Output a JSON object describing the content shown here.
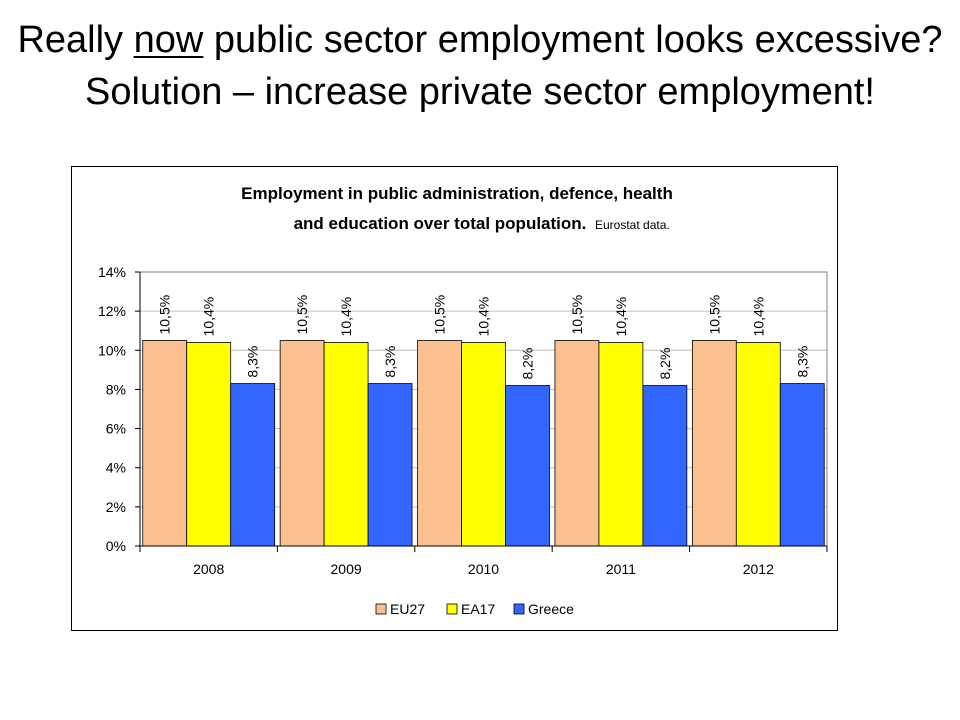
{
  "slide": {
    "title_before": "Really ",
    "title_emphasis": "now",
    "title_after": " public sector employment looks excessive? Solution – increase private sector employment!"
  },
  "chart_data": {
    "type": "bar",
    "title_line1": "Employment in public administration, defence, health",
    "title_line2": "and education over total population.",
    "subtitle": "Eurostat data.",
    "xlabel": "",
    "ylabel": "",
    "categories": [
      "2008",
      "2009",
      "2010",
      "2011",
      "2012"
    ],
    "series": [
      {
        "name": "EU27",
        "values": [
          10.5,
          10.5,
          10.5,
          10.5,
          10.5
        ],
        "labels": [
          "10,5%",
          "10,5%",
          "10,5%",
          "10,5%",
          "10,5%"
        ],
        "color": "#fac090"
      },
      {
        "name": "EA17",
        "values": [
          10.4,
          10.4,
          10.4,
          10.4,
          10.4
        ],
        "labels": [
          "10,4%",
          "10,4%",
          "10,4%",
          "10,4%",
          "10,4%"
        ],
        "color": "#ffff00"
      },
      {
        "name": "Greece",
        "values": [
          8.3,
          8.3,
          8.2,
          8.2,
          8.3
        ],
        "labels": [
          "8,3%",
          "8,3%",
          "8,2%",
          "8,2%",
          "8,3%"
        ],
        "color": "#3366ff"
      }
    ],
    "y_ticks": [
      "0%",
      "2%",
      "4%",
      "6%",
      "8%",
      "10%",
      "12%",
      "14%"
    ],
    "ylim": [
      0,
      14
    ],
    "grid": true,
    "legend_position": "bottom"
  }
}
